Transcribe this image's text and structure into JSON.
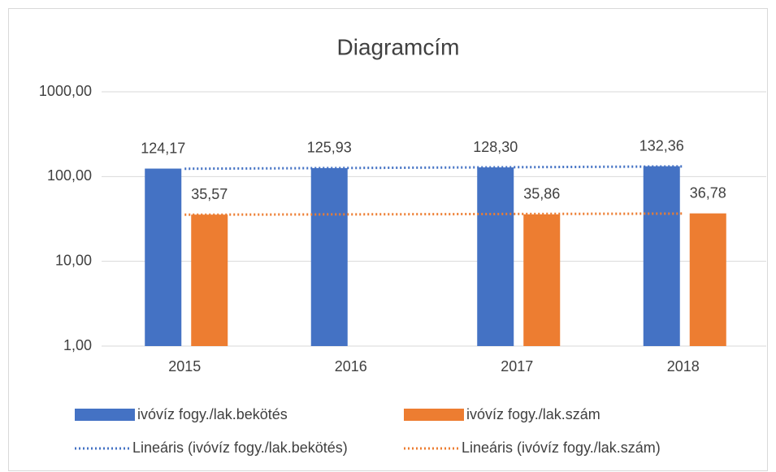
{
  "chart_data": {
    "type": "bar",
    "title": "Diagramcím",
    "categories": [
      "2015",
      "2016",
      "2017",
      "2018"
    ],
    "series": [
      {
        "name": "ivóvíz fogy./lak.bekötés",
        "color": "#4472c4",
        "values": [
          124.17,
          125.93,
          128.3,
          132.36
        ],
        "value_labels": [
          "124,17",
          "125,93",
          "128,30",
          "132,36"
        ],
        "trendline": {
          "type": "linear",
          "name": "Lineáris (ivóvíz fogy./lak.bekötés)",
          "color": "#4472c4"
        }
      },
      {
        "name": "ivóvíz fogy./lak.szám",
        "color": "#ed7d31",
        "values": [
          35.57,
          null,
          35.86,
          36.78
        ],
        "value_labels": [
          "35,57",
          null,
          "35,86",
          "36,78"
        ],
        "trendline": {
          "type": "linear",
          "name": "Lineáris (ivóvíz fogy./lak.szám)",
          "color": "#ed7d31"
        }
      }
    ],
    "ylim": [
      1,
      1000
    ],
    "yticks": [
      {
        "value": 1,
        "label": "1,00"
      },
      {
        "value": 10,
        "label": "10,00"
      },
      {
        "value": 100,
        "label": "100,00"
      },
      {
        "value": 1000,
        "label": "1000,00"
      }
    ],
    "log_scale": true,
    "grid": true,
    "legend": "bottom"
  }
}
